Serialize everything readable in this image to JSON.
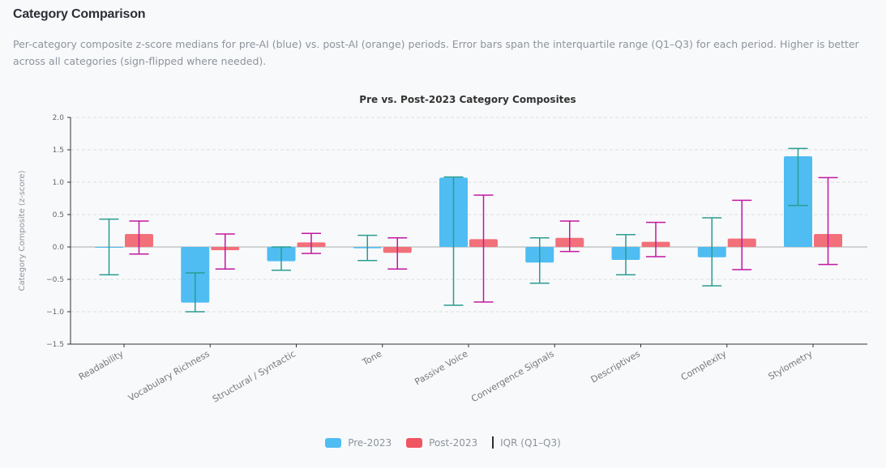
{
  "header": {
    "title": "Category Comparison",
    "description": "Per-category composite z-score medians for pre-AI (blue) vs. post-AI (orange) periods. Error bars span the interquartile range (Q1–Q3) for each period. Higher is better across all categories (sign-flipped where needed)."
  },
  "colors": {
    "pre": "#4fbdf2",
    "post": "#f2707a",
    "pre_err": "#2a9d8f",
    "post_err": "#c2189f",
    "legend_post": "#f05562"
  },
  "chart_data": {
    "type": "bar",
    "title": "Pre vs. Post-2023 Category Composites",
    "xlabel": "",
    "ylabel": "Category Composite (z-score)",
    "ylim": [
      -1.5,
      2.0
    ],
    "yticks": [
      "2.0",
      "1.5",
      "1.0",
      "0.5",
      "0.0",
      "−0.5",
      "−1.0",
      "−1.5"
    ],
    "categories": [
      "Readability",
      "Vocabulary Richness",
      "Structural / Syntactic",
      "Tone",
      "Passive Voice",
      "Convergence Signals",
      "Descriptives",
      "Complexity",
      "Stylometry"
    ],
    "series": [
      {
        "name": "Pre-2023",
        "values": [
          0.0,
          -0.86,
          -0.22,
          -0.02,
          1.07,
          -0.24,
          -0.2,
          -0.16,
          1.4
        ],
        "q1": [
          -0.43,
          -1.0,
          -0.36,
          -0.21,
          -0.9,
          -0.56,
          -0.43,
          -0.6,
          0.64
        ],
        "q3": [
          0.43,
          -0.4,
          0.0,
          0.18,
          1.08,
          0.14,
          0.19,
          0.45,
          1.52
        ]
      },
      {
        "name": "Post-2023",
        "values": [
          0.2,
          -0.05,
          0.07,
          -0.09,
          0.12,
          0.14,
          0.08,
          0.13,
          0.2
        ],
        "q1": [
          -0.11,
          -0.34,
          -0.1,
          -0.34,
          -0.85,
          -0.07,
          -0.15,
          -0.35,
          -0.27
        ],
        "q3": [
          0.4,
          0.2,
          0.21,
          0.14,
          0.8,
          0.4,
          0.38,
          0.72,
          1.07
        ]
      }
    ],
    "grid": true,
    "legend": {
      "position": "bottom",
      "items": [
        "Pre-2023",
        "Post-2023",
        "IQR (Q1–Q3)"
      ]
    }
  }
}
